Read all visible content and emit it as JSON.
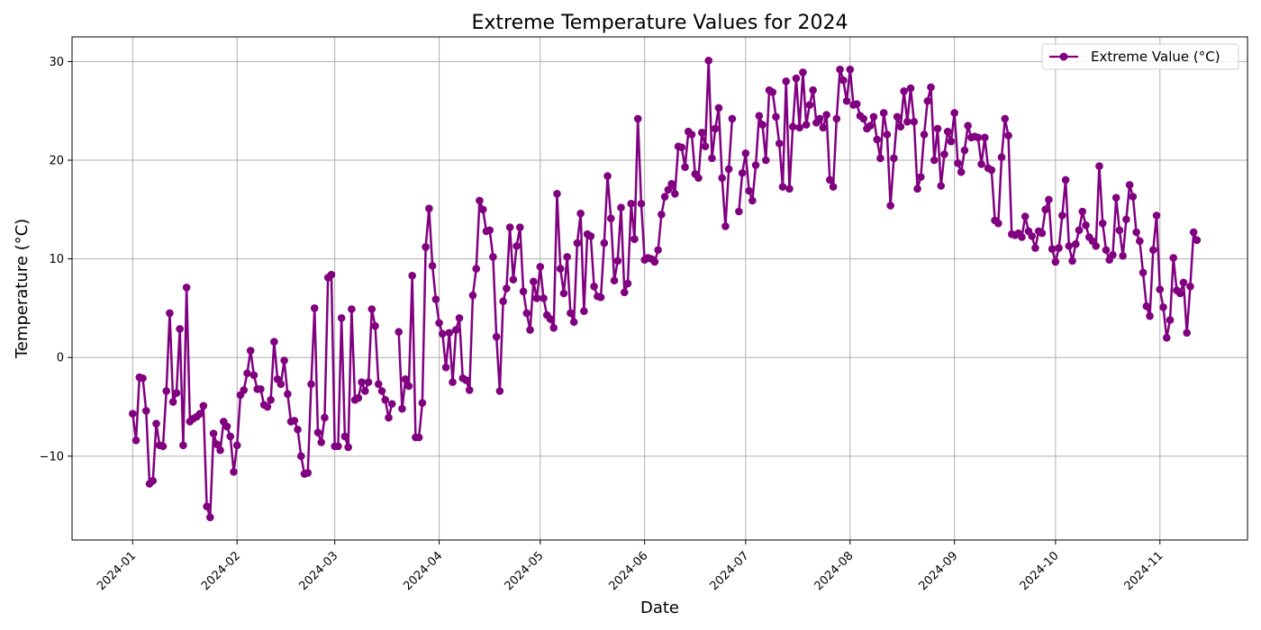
{
  "chart_data": {
    "type": "line",
    "title": "Extreme Temperature Values for 2024",
    "xlabel": "Date",
    "ylabel": "Temperature (°C)",
    "xlim": [
      "2023-12-14",
      "2024-11-27"
    ],
    "ylim": [
      -18.5,
      32.5
    ],
    "x_ticks": [
      "2024-01",
      "2024-02",
      "2024-03",
      "2024-04",
      "2024-05",
      "2024-06",
      "2024-07",
      "2024-08",
      "2024-09",
      "2024-10",
      "2024-11"
    ],
    "y_ticks": [
      -10,
      0,
      10,
      20,
      30
    ],
    "y_tick_labels": [
      "−10",
      "0",
      "10",
      "20",
      "30"
    ],
    "grid": true,
    "legend_position": "top-right",
    "color": "#800080",
    "marker": "circle",
    "x_start": "2024-01-01",
    "x_step_days": 1,
    "series": [
      {
        "name": "Extreme Value (°C)",
        "values": [
          -5.7,
          -8.4,
          -2.0,
          -2.1,
          -5.4,
          -12.8,
          -12.5,
          -6.7,
          -8.9,
          -9.0,
          -3.4,
          4.5,
          -4.5,
          -3.6,
          2.9,
          -8.9,
          7.1,
          -6.5,
          -6.2,
          -6.0,
          -5.7,
          -4.9,
          -15.1,
          -16.2,
          -7.7,
          -8.8,
          -9.4,
          -6.5,
          -7.0,
          -8.0,
          -11.6,
          -8.9,
          -3.8,
          -3.3,
          -1.6,
          0.7,
          -1.8,
          -3.2,
          -3.2,
          -4.8,
          -5.0,
          -4.3,
          1.6,
          -2.2,
          -2.7,
          -0.3,
          -3.7,
          -6.5,
          -6.4,
          -7.3,
          -10.0,
          -11.8,
          -11.7,
          -2.7,
          5.0,
          -7.6,
          -8.6,
          -6.1,
          8.1,
          8.4,
          -9.0,
          -9.0,
          4.0,
          -8.0,
          -9.1,
          4.9,
          -4.3,
          -4.1,
          -2.5,
          -3.4,
          -2.5,
          4.9,
          3.2,
          -2.7,
          -3.4,
          -4.3,
          -6.1,
          -4.7,
          null,
          2.6,
          -5.2,
          -2.2,
          -2.9,
          8.3,
          -8.1,
          -8.1,
          -4.6,
          11.2,
          15.1,
          9.3,
          5.9,
          3.5,
          2.4,
          -1.0,
          2.5,
          -2.5,
          2.8,
          4.0,
          -2.1,
          -2.3,
          -3.3,
          6.3,
          9.0,
          15.9,
          15.0,
          12.8,
          12.9,
          10.2,
          2.1,
          -3.4,
          5.7,
          7.0,
          13.2,
          7.9,
          11.3,
          13.2,
          6.7,
          4.5,
          2.8,
          7.7,
          6.0,
          9.2,
          6.0,
          4.3,
          3.9,
          3.0,
          16.6,
          9.0,
          6.5,
          10.2,
          4.5,
          3.6,
          11.6,
          14.6,
          4.7,
          12.5,
          12.3,
          7.2,
          6.2,
          6.1,
          11.6,
          18.4,
          14.1,
          7.8,
          9.8,
          15.2,
          6.6,
          7.5,
          15.6,
          12.0,
          24.2,
          15.6,
          9.9,
          10.1,
          10.0,
          9.7,
          10.9,
          14.5,
          16.3,
          17.0,
          17.6,
          16.6,
          21.4,
          21.3,
          19.3,
          22.9,
          22.6,
          18.6,
          18.2,
          22.8,
          21.4,
          30.1,
          20.2,
          23.2,
          25.3,
          18.2,
          13.3,
          19.1,
          24.2,
          null,
          14.8,
          18.7,
          20.7,
          16.9,
          15.9,
          19.5,
          24.5,
          23.6,
          20.0,
          27.1,
          26.9,
          24.4,
          21.7,
          17.3,
          28.0,
          17.1,
          23.4,
          28.3,
          23.3,
          28.9,
          23.6,
          25.6,
          27.1,
          23.8,
          24.2,
          23.3,
          24.6,
          18.0,
          17.3,
          24.2,
          29.2,
          28.1,
          26.0,
          29.2,
          25.6,
          25.7,
          24.5,
          24.2,
          23.2,
          23.5,
          24.4,
          22.1,
          20.2,
          24.8,
          22.6,
          15.4,
          20.2,
          24.4,
          23.4,
          27.0,
          23.9,
          27.3,
          23.9,
          17.1,
          18.3,
          22.6,
          26.0,
          27.4,
          20.0,
          23.2,
          17.4,
          20.6,
          22.9,
          21.9,
          24.8,
          19.7,
          18.8,
          21.0,
          23.5,
          22.3,
          22.4,
          22.3,
          19.6,
          22.3,
          19.2,
          19.0,
          13.9,
          13.6,
          20.3,
          24.2,
          22.5,
          12.5,
          12.4,
          12.6,
          12.2,
          14.3,
          12.8,
          12.3,
          11.1,
          12.8,
          12.6,
          15.0,
          16.0,
          11.0,
          9.7,
          11.1,
          14.4,
          18.0,
          11.3,
          9.8,
          11.5,
          12.9,
          14.8,
          13.4,
          12.2,
          11.8,
          11.3,
          19.4,
          13.6,
          10.9,
          9.9,
          10.4,
          16.2,
          12.9,
          10.3,
          14.0,
          17.5,
          16.3,
          12.7,
          11.8,
          8.6,
          5.2,
          4.2,
          10.9,
          14.4,
          6.9,
          5.1,
          2.0,
          3.8,
          10.1,
          6.8,
          6.5,
          7.6,
          2.5,
          7.2,
          12.7,
          11.9
        ]
      }
    ]
  }
}
